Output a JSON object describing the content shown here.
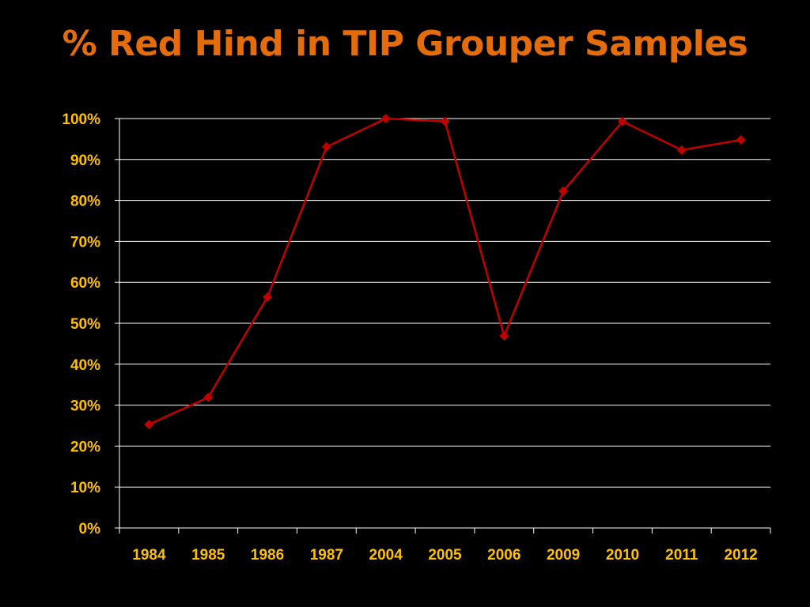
{
  "title": "% Red Hind in TIP Grouper Samples",
  "colors": {
    "title": "#e46c0a",
    "tick_labels": "#ffc000",
    "line": "#c00000",
    "gridlines": "#ffffff",
    "background": "#000000"
  },
  "chart_data": {
    "type": "line",
    "title": "% Red Hind in TIP Grouper Samples",
    "xlabel": "",
    "ylabel": "",
    "categories": [
      "1984",
      "1985",
      "1986",
      "1987",
      "2004",
      "2005",
      "2006",
      "2009",
      "2010",
      "2011",
      "2012"
    ],
    "series": [
      {
        "values": [
          25.3,
          31.9,
          56.4,
          93.1,
          100,
          99.3,
          46.9,
          82.3,
          99.3,
          92.3,
          94.8
        ],
        "marker": "diamond"
      }
    ],
    "yticks": [
      "0%",
      "10%",
      "20%",
      "30%",
      "40%",
      "50%",
      "60%",
      "70%",
      "80%",
      "90%",
      "100%"
    ],
    "ylim": [
      0,
      100
    ],
    "y_unit": "%",
    "grid": true,
    "legend": "none"
  }
}
